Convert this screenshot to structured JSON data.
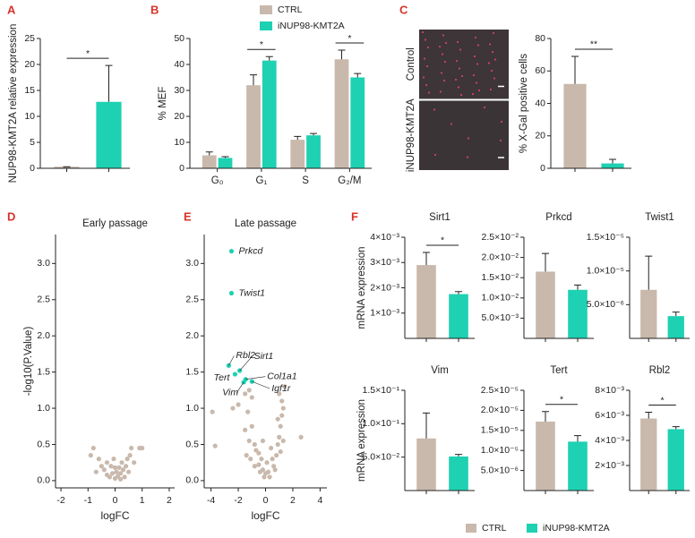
{
  "chart_data": [
    {
      "type": "bar",
      "panel": "A",
      "ylabel": "NUP98-KMT2A relative expression",
      "categories": [
        null,
        null
      ],
      "values": [
        0.3,
        12.8
      ],
      "errors": [
        0,
        7
      ],
      "colors": [
        "#c9b9ac",
        "#1ed1b2"
      ],
      "ylim": [
        0,
        25
      ],
      "yticks": [
        0,
        5,
        10,
        15,
        20,
        25
      ],
      "significance": "*"
    },
    {
      "type": "bar",
      "panel": "B",
      "ylabel": "% MEF",
      "categories": [
        "G₀",
        "G₁",
        "S",
        "G₂/M"
      ],
      "series": [
        {
          "name": "CTRL",
          "color": "#c9b9ac",
          "values": [
            5,
            32,
            11,
            42
          ],
          "errors": [
            1.3,
            4,
            1.3,
            3.5
          ]
        },
        {
          "name": "iNUP98-KMT2A",
          "color": "#1ed1b2",
          "values": [
            4,
            41.5,
            12.7,
            35
          ],
          "errors": [
            0.5,
            1.5,
            0.7,
            1.5
          ]
        }
      ],
      "ylim": [
        0,
        50
      ],
      "yticks": [
        0,
        10,
        20,
        30,
        40,
        50
      ],
      "significance": [
        null,
        "*",
        null,
        "*"
      ]
    },
    {
      "type": "image",
      "panel": "C",
      "labels": [
        "Control",
        "iNUP98-KMT2A"
      ]
    },
    {
      "type": "bar",
      "ylabel": "% X-Gal positive cells",
      "categories": [
        null,
        null
      ],
      "values": [
        52,
        3
      ],
      "errors": [
        17,
        2.5
      ],
      "colors": [
        "#c9b9ac",
        "#1ed1b2"
      ],
      "ylim": [
        0,
        80
      ],
      "yticks": [
        0,
        20,
        40,
        60,
        80
      ],
      "significance": "**"
    },
    {
      "type": "scatter",
      "panel": "D",
      "title": "Early passage",
      "xlabel": "logFC",
      "ylabel": "-log10(P.Value)",
      "xlim": [
        -2.2,
        2.2
      ],
      "xticks": [
        -2,
        -1,
        0,
        1,
        2
      ],
      "ylim": [
        -0.1,
        3.4
      ],
      "yticks": [
        {
          "value": 0,
          "label": "0.0"
        },
        0.5,
        {
          "value": 1,
          "label": "1.0"
        },
        1.5,
        {
          "value": 2,
          "label": "2.0"
        },
        2.5,
        {
          "value": 3,
          "label": "3.0"
        }
      ],
      "series": [
        {
          "color": "#c9b9ac",
          "x": [
            -0.9,
            -0.8,
            -0.6,
            -0.5,
            -0.4,
            -0.3,
            -0.3,
            -0.2,
            -0.1,
            -0.15,
            0.0,
            0.05,
            0.1,
            0.15,
            0.2,
            0.25,
            0.3,
            0.35,
            0.4,
            0.45,
            0.5,
            0.55,
            0.6,
            0.7,
            0.9,
            1.0,
            -0.7,
            -0.05,
            0.0,
            0.2
          ],
          "y": [
            0.35,
            0.45,
            0.3,
            0.2,
            0.15,
            0.25,
            0.08,
            0.05,
            0.1,
            0.2,
            0.03,
            0.12,
            0.06,
            0.18,
            0.1,
            0.25,
            0.15,
            0.05,
            0.2,
            0.3,
            0.12,
            0.35,
            0.45,
            0.25,
            0.45,
            0.45,
            0.12,
            0.3,
            0.18,
            0.02
          ]
        }
      ]
    },
    {
      "type": "scatter",
      "panel": "E",
      "title": "Late passage",
      "xlabel": "logFC",
      "xlim": [
        -4.5,
        4.5
      ],
      "xticks": [
        -4,
        -2,
        0,
        2,
        4
      ],
      "ylim": [
        -0.1,
        3.4
      ],
      "yticks": [
        {
          "value": 0,
          "label": "0.0"
        },
        0.5,
        {
          "value": 1,
          "label": "1.0"
        },
        1.5,
        {
          "value": 2,
          "label": "2.0"
        },
        2.5,
        {
          "value": 3,
          "label": "3.0"
        }
      ],
      "series": [
        {
          "color": "#c9b9ac",
          "x": [
            -3.9,
            -3.7,
            -2.4,
            -2.0,
            -1.5,
            -1.2,
            -1.0,
            -1.3,
            -1.5,
            -1.0,
            -1.2,
            -0.8,
            -1.4,
            -1.1,
            -0.7,
            -0.5,
            -0.3,
            -0.5,
            -0.2,
            0.0,
            0.2,
            -0.1,
            0.3,
            0.1,
            -0.4,
            0.5,
            0.6,
            0.8,
            0.9,
            1.0,
            1.1,
            0.9,
            1.2,
            1.3,
            1.2,
            1.0,
            1.4,
            1.1,
            1.3,
            0.7,
            -0.8,
            2.6,
            -0.2,
            0.4
          ],
          "y": [
            0.95,
            0.48,
            1.0,
            1.05,
            1.2,
            1.25,
            1.15,
            0.95,
            0.7,
            0.75,
            0.55,
            0.5,
            0.35,
            0.3,
            0.42,
            0.38,
            0.3,
            0.22,
            0.15,
            0.1,
            0.12,
            0.05,
            0.05,
            0.25,
            0.12,
            0.3,
            0.2,
            0.35,
            0.5,
            0.6,
            0.75,
            0.85,
            0.9,
            1.0,
            1.1,
            1.2,
            1.3,
            0.4,
            0.55,
            0.15,
            0.2,
            0.6,
            0.55,
            0.45
          ]
        },
        {
          "color": "#1ed1b2",
          "labels": [
            "Prkcd",
            "Twist1",
            "Rbl2",
            "Sirt1",
            "Tert",
            "Col1a1",
            "Vim",
            "Igf1r"
          ],
          "x": [
            -2.5,
            -2.5,
            -2.7,
            -1.9,
            -2.24,
            -1.46,
            -1.6,
            -1.0
          ],
          "y": [
            3.17,
            2.59,
            1.59,
            1.52,
            1.47,
            1.4,
            1.36,
            1.37
          ]
        }
      ]
    },
    {
      "type": "bar",
      "panel": "F",
      "title": "Sirt1",
      "ylabel": "mRNA expression",
      "categories": [
        null,
        null
      ],
      "values": [
        0.0029,
        0.00175
      ],
      "errors": [
        0.0005,
        0.0001
      ],
      "colors": [
        "#c9b9ac",
        "#1ed1b2"
      ],
      "ylim": [
        0,
        0.004
      ],
      "yticks": [
        {
          "value": 0.001,
          "label": "1×10⁻³"
        },
        {
          "value": 0.002,
          "label": "2×10⁻³"
        },
        {
          "value": 0.003,
          "label": "3×10⁻³"
        },
        {
          "value": 0.004,
          "label": "4×10⁻³"
        }
      ],
      "significance": "*"
    },
    {
      "type": "bar",
      "title": "Prkcd",
      "categories": [
        null,
        null
      ],
      "values": [
        0.0165,
        0.012
      ],
      "errors": [
        0.0045,
        0.0012
      ],
      "colors": [
        "#c9b9ac",
        "#1ed1b2"
      ],
      "ylim": [
        0,
        0.025
      ],
      "yticks": [
        {
          "value": 0.005,
          "label": "5.0×10⁻³"
        },
        {
          "value": 0.01,
          "label": "1.0×10⁻²"
        },
        {
          "value": 0.015,
          "label": "1.5×10⁻²"
        },
        {
          "value": 0.02,
          "label": "2.0×10⁻²"
        },
        {
          "value": 0.025,
          "label": "2.5×10⁻²"
        }
      ]
    },
    {
      "type": "bar",
      "title": "Twist1",
      "categories": [
        null,
        null
      ],
      "values": [
        7.2e-06,
        3.3e-06
      ],
      "errors": [
        5e-06,
        6e-07
      ],
      "colors": [
        "#c9b9ac",
        "#1ed1b2"
      ],
      "ylim": [
        0,
        1.5e-05
      ],
      "yticks": [
        {
          "value": 5e-06,
          "label": "5.0×10⁻⁶"
        },
        {
          "value": 1e-05,
          "label": "1.0×10⁻⁵"
        },
        {
          "value": 1.5e-05,
          "label": "1.5×10⁻⁵"
        }
      ]
    },
    {
      "type": "bar",
      "title": "Vim",
      "ylabel": "mRNA expression",
      "categories": [
        null,
        null
      ],
      "values": [
        0.078,
        0.051
      ],
      "errors": [
        0.038,
        0.003
      ],
      "colors": [
        "#c9b9ac",
        "#1ed1b2"
      ],
      "ylim": [
        0,
        0.15
      ],
      "yticks": [
        {
          "value": 0.05,
          "label": "5.0×10⁻²"
        },
        {
          "value": 0.1,
          "label": "1.0×10⁻¹"
        },
        {
          "value": 0.15,
          "label": "1.5×10⁻¹"
        }
      ]
    },
    {
      "type": "bar",
      "title": "Tert",
      "categories": [
        null,
        null
      ],
      "values": [
        1.72e-05,
        1.22e-05
      ],
      "errors": [
        2.5e-06,
        1.5e-06
      ],
      "colors": [
        "#c9b9ac",
        "#1ed1b2"
      ],
      "ylim": [
        0,
        2.5e-05
      ],
      "yticks": [
        {
          "value": 5e-06,
          "label": "5.0×10⁻⁶"
        },
        {
          "value": 1e-05,
          "label": "1.0×10⁻⁵"
        },
        {
          "value": 1.5e-05,
          "label": "1.5×10⁻⁵"
        },
        {
          "value": 2e-05,
          "label": "2.0×10⁻⁵"
        },
        {
          "value": 2.5e-05,
          "label": "2.5×10⁻⁵"
        }
      ],
      "significance": "*"
    },
    {
      "type": "bar",
      "title": "Rbl2",
      "categories": [
        null,
        null
      ],
      "values": [
        0.00575,
        0.0049
      ],
      "errors": [
        0.0005,
        0.0002
      ],
      "colors": [
        "#c9b9ac",
        "#1ed1b2"
      ],
      "ylim": [
        0,
        0.008
      ],
      "yticks": [
        {
          "value": 0.002,
          "label": "2×10⁻³"
        },
        {
          "value": 0.004,
          "label": "4×10⁻³"
        },
        {
          "value": 0.006,
          "label": "6×10⁻³"
        },
        {
          "value": 0.008,
          "label": "8×10⁻³"
        }
      ],
      "significance": "*"
    },
    {
      "type": "legend",
      "series": [
        {
          "name": "CTRL",
          "color": "#c9b9ac"
        },
        {
          "name": "iNUP98-KMT2A",
          "color": "#1ed1b2"
        }
      ]
    }
  ]
}
